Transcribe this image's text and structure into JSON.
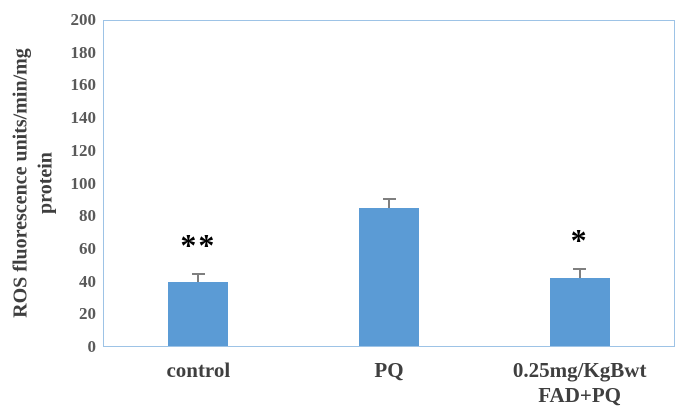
{
  "chart_data": {
    "type": "bar",
    "title": "",
    "ylabel": "ROS fluorescence units/min/mg protein",
    "ylabel_lines": {
      "line1": "ROS fluorescence units/min/mg",
      "line2": "protein"
    },
    "categories": [
      "control",
      "PQ",
      "0.25mg/KgBwt\nFAD+PQ"
    ],
    "values": [
      40,
      85,
      42
    ],
    "errors_plus": [
      4,
      5,
      5
    ],
    "annotations": [
      "**",
      "",
      "*"
    ],
    "ylim": [
      0,
      200
    ],
    "ytick_step": 20,
    "ytick_labels": [
      "0",
      "20",
      "40",
      "60",
      "80",
      "100",
      "120",
      "140",
      "160",
      "180",
      "200"
    ],
    "legend": null,
    "grid": "off",
    "colors": {
      "bar_fill": "#5B9BD5",
      "plot_border": "#9DC3E6",
      "error_bar": "#7F7F7F",
      "tick_text": "#595959",
      "label_text": "#3F3F3F",
      "annotation_text": "#000000"
    }
  }
}
